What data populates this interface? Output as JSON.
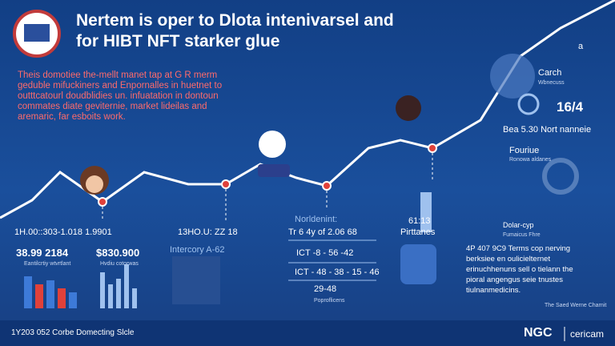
{
  "header": {
    "title": [
      "Nertem is oper to Dlota intenivarsel and",
      "for HIBT NFT starker glue"
    ]
  },
  "intro": [
    "Theis domotiee the-mellt manet tap at G R merm",
    "geduble mifuckiners and Enpornalles in huetnet to",
    "outttcatourl doudblidies un. infuatation in dontoun",
    "commates diate geviternie, market lideilas and",
    "aremaric, far esboits work."
  ],
  "right_panel": {
    "letter": "a",
    "search": "Carch",
    "search_sub": "Wbnecuss",
    "ratio": "16/4",
    "note": "Bea 5.30 Nort nanneie",
    "feature": "Fouriue",
    "feature_sub": "Ronowa aldanes",
    "dollar": "Dolar-cyp",
    "dollar_sub": "Fumaicus Fhre"
  },
  "left_stats": {
    "heading": "1H.00::303-1.018 1.9901",
    "stat1": "38.99 2184",
    "stat1_sub": "Eantilcrtiy wtvrtlant",
    "stat2": "$830.900",
    "stat2_sub": "Hvdiu cotorwas"
  },
  "middle_stats": {
    "heading": "13HO.U: ZZ 18",
    "sub": "Intercory A-62"
  },
  "center_table": {
    "title": "Norldenint:",
    "rows": [
      "Tr 6 4y of 2.06 68",
      "ICT -8 - 56 -42",
      "ICT - 48 - 38 - 15 - 46",
      "29-48"
    ],
    "caption": "Poproflicens"
  },
  "pillar": {
    "value": "61:13",
    "label": "Pirttanes"
  },
  "right_text": {
    "lines": [
      "4P 407 9C9 Terms cop nerving",
      "berksiee en oulicielternet",
      "erinuchhenuns sell o tielann the",
      "pioral angengus seie tnustes",
      "tiulnanmedicins."
    ],
    "credit": "The Saed Werne Charnit"
  },
  "footer": {
    "left": "1Y203 052 Corbe Domecting Slcle",
    "logo": "NGC",
    "brand": "cericam"
  }
}
